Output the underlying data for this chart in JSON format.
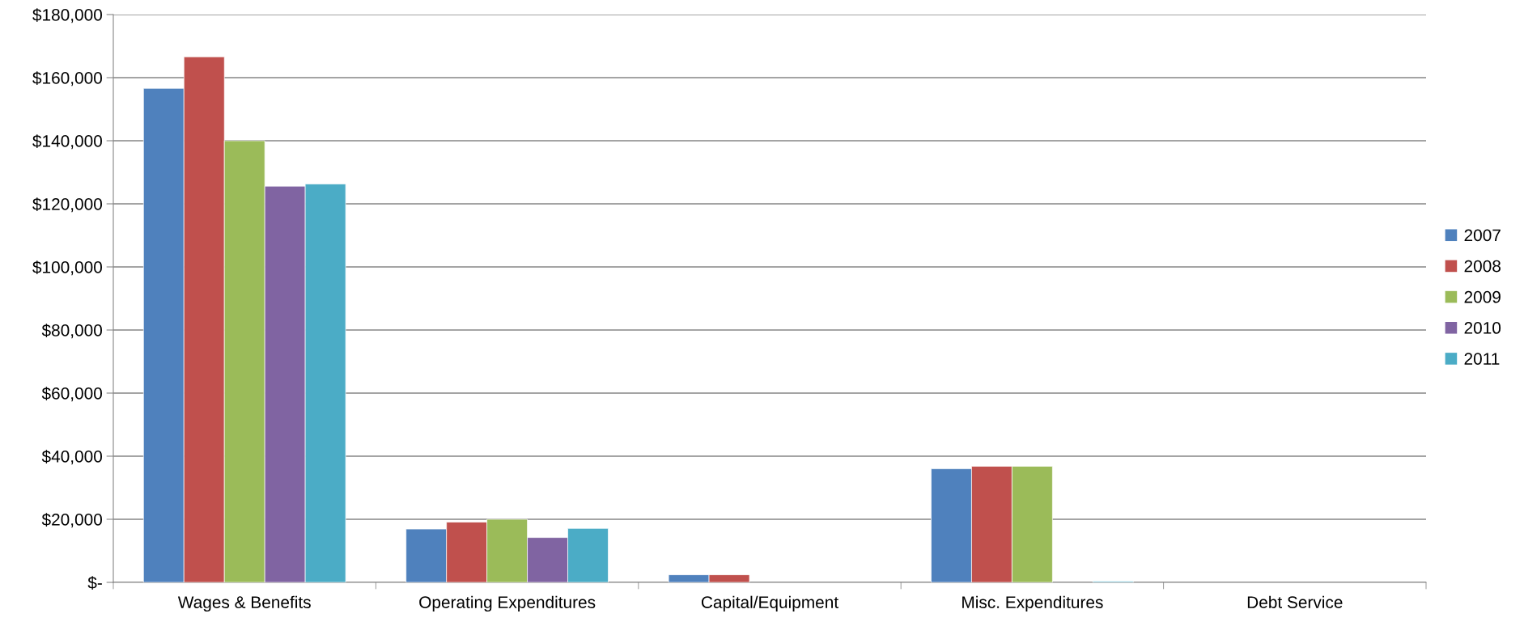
{
  "chart_data": {
    "type": "bar",
    "categories": [
      "Wages & Benefits",
      "Operating Expenditures",
      "Capital/Equipment",
      "Misc. Expenditures",
      "Debt Service"
    ],
    "series": [
      {
        "name": "2007",
        "color": "#4f81bd",
        "values": [
          156600,
          16900,
          2400,
          36000,
          0
        ]
      },
      {
        "name": "2008",
        "color": "#c0504d",
        "values": [
          166600,
          19100,
          2400,
          36800,
          0
        ]
      },
      {
        "name": "2009",
        "color": "#9bbb59",
        "values": [
          140000,
          20000,
          0,
          36800,
          0
        ]
      },
      {
        "name": "2010",
        "color": "#8064a2",
        "values": [
          125600,
          14200,
          0,
          0,
          0
        ]
      },
      {
        "name": "2011",
        "color": "#4bacc6",
        "values": [
          126300,
          17100,
          0,
          300,
          0
        ]
      }
    ],
    "ylim": [
      0,
      180000
    ],
    "yticks": [
      {
        "value": 0,
        "label": "$-"
      },
      {
        "value": 20000,
        "label": "$20,000"
      },
      {
        "value": 40000,
        "label": "$40,000"
      },
      {
        "value": 60000,
        "label": "$60,000"
      },
      {
        "value": 80000,
        "label": "$80,000"
      },
      {
        "value": 100000,
        "label": "$100,000"
      },
      {
        "value": 120000,
        "label": "$120,000"
      },
      {
        "value": 140000,
        "label": "$140,000"
      },
      {
        "value": 160000,
        "label": "$160,000"
      },
      {
        "value": 180000,
        "label": "$180,000"
      }
    ],
    "grid": "y",
    "legend": "right"
  }
}
